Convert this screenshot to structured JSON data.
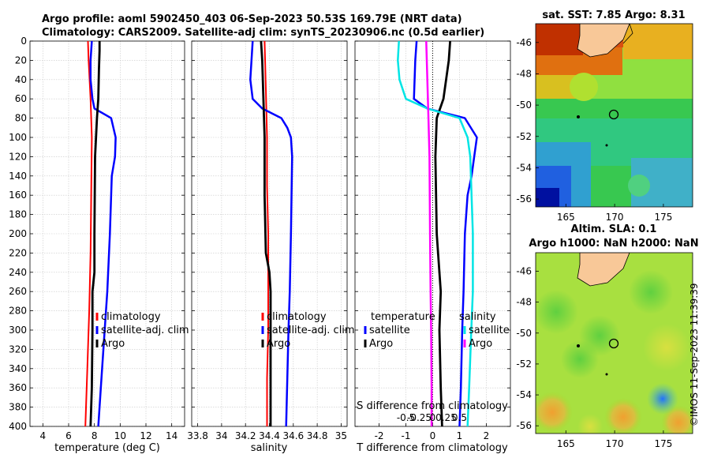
{
  "header": {
    "title_line1": "Argo profile: aoml 5902450_403 06-Sep-2023 50.53S 169.79E (NRT data)",
    "title_line2": "Climatology: CARS2009. Satellite-adj clim: synTS_20230906.nc (0.5d earlier)"
  },
  "credit": "©IMOS 11-Sep-2023 11:39:39",
  "colors": {
    "climatology": "#ff0000",
    "satellite": "#0000ff",
    "argo": "#000000",
    "diff_temperature": "#00e5e5",
    "diff_salinity": "#ff00ff"
  },
  "depth_ticks": [
    0,
    20,
    40,
    60,
    80,
    100,
    120,
    140,
    160,
    180,
    200,
    220,
    240,
    260,
    280,
    300,
    320,
    340,
    360,
    380,
    400
  ],
  "chart_data": [
    {
      "type": "line",
      "name": "temperature",
      "xlabel": "temperature (deg C)",
      "xlim": [
        3,
        15
      ],
      "ylim": [
        0,
        400
      ],
      "xticks": [
        4,
        6,
        8,
        10,
        12,
        14
      ],
      "legend": [
        "climatology",
        "satellite-adj. clim",
        "Argo"
      ],
      "series": [
        {
          "name": "climatology",
          "depth": [
            0,
            20,
            60,
            100,
            160,
            220,
            280,
            340,
            400
          ],
          "values": [
            7.5,
            7.55,
            7.7,
            7.8,
            7.75,
            7.7,
            7.6,
            7.45,
            7.3
          ]
        },
        {
          "name": "satellite-adj. clim",
          "depth": [
            0,
            20,
            40,
            60,
            70,
            80,
            100,
            120,
            140,
            160,
            200,
            260,
            300,
            360,
            400
          ],
          "values": [
            7.8,
            7.7,
            7.7,
            7.85,
            8.0,
            9.3,
            9.65,
            9.6,
            9.35,
            9.3,
            9.2,
            9.0,
            8.8,
            8.5,
            8.3
          ]
        },
        {
          "name": "Argo",
          "depth": [
            0,
            10,
            30,
            60,
            80,
            120,
            200,
            240,
            260,
            300,
            360,
            400
          ],
          "values": [
            8.4,
            8.4,
            8.35,
            8.3,
            8.2,
            8.05,
            8.0,
            8.0,
            7.85,
            7.85,
            7.8,
            7.7
          ]
        }
      ]
    },
    {
      "type": "line",
      "name": "salinity",
      "xlabel": "salinity",
      "xlim": [
        33.75,
        35.05
      ],
      "ylim": [
        0,
        400
      ],
      "xticks": [
        "33.8",
        "34",
        "34.2",
        "34.4",
        "34.6",
        "34.8",
        "35"
      ],
      "legend": [
        "climatology",
        "satellite-adj. clim",
        "Argo"
      ],
      "series": [
        {
          "name": "climatology",
          "depth": [
            0,
            50,
            100,
            150,
            200,
            260,
            300,
            350,
            400
          ],
          "values": [
            34.36,
            34.37,
            34.38,
            34.38,
            34.39,
            34.39,
            34.39,
            34.38,
            34.38
          ]
        },
        {
          "name": "satellite-adj. clim",
          "depth": [
            0,
            20,
            40,
            60,
            70,
            80,
            90,
            100,
            120,
            200,
            260,
            300,
            350,
            400
          ],
          "values": [
            34.26,
            34.25,
            34.24,
            34.26,
            34.34,
            34.5,
            34.55,
            34.58,
            34.59,
            34.58,
            34.57,
            34.56,
            34.55,
            34.54
          ]
        },
        {
          "name": "Argo",
          "depth": [
            0,
            20,
            60,
            100,
            160,
            220,
            240,
            260,
            300,
            360,
            400
          ],
          "values": [
            34.33,
            34.34,
            34.35,
            34.36,
            34.36,
            34.37,
            34.4,
            34.41,
            34.41,
            34.41,
            34.41
          ]
        }
      ]
    },
    {
      "type": "line",
      "name": "differences",
      "xlabel": "T difference from climatology",
      "xlabel_top": "S difference from climatology",
      "xlim": [
        -2.9,
        2.9
      ],
      "ylim": [
        0,
        400
      ],
      "xticks": [
        "-2",
        "-1",
        "0",
        "1",
        "2"
      ],
      "s_ticks": [
        "-0.5",
        "-0.25",
        "0",
        "0.25",
        "0.5"
      ],
      "legend_left_title": "temperature",
      "legend_right_title": "salinity",
      "legend": [
        "satellite",
        "Argo",
        "satellite",
        "Argo"
      ],
      "series": [
        {
          "name": "temperature satellite",
          "depth": [
            0,
            20,
            60,
            70,
            80,
            100,
            120,
            140,
            160,
            200,
            260,
            300,
            360,
            400
          ],
          "values": [
            -0.6,
            -0.65,
            -0.7,
            -0.2,
            1.2,
            1.65,
            1.55,
            1.45,
            1.3,
            1.2,
            1.15,
            1.1,
            1.05,
            1.0
          ]
        },
        {
          "name": "temperature Argo",
          "depth": [
            0,
            20,
            40,
            60,
            80,
            120,
            200,
            240,
            260,
            300,
            360,
            400
          ],
          "values": [
            0.65,
            0.6,
            0.5,
            0.4,
            0.15,
            0.1,
            0.15,
            0.25,
            0.3,
            0.25,
            0.3,
            0.35
          ]
        },
        {
          "name": "salinity satellite",
          "depth": [
            0,
            20,
            40,
            60,
            70,
            80,
            100,
            120,
            200,
            260,
            300,
            360,
            400
          ],
          "values": [
            -0.63,
            -0.65,
            -0.62,
            -0.5,
            -0.1,
            0.5,
            0.65,
            0.7,
            0.75,
            0.75,
            0.72,
            0.68,
            0.65
          ]
        },
        {
          "name": "salinity Argo",
          "depth": [
            0,
            40,
            80,
            120,
            200,
            260,
            300,
            360,
            400
          ],
          "values": [
            -0.12,
            -0.1,
            -0.08,
            -0.06,
            -0.05,
            -0.04,
            -0.03,
            -0.02,
            -0.02
          ]
        }
      ]
    },
    {
      "type": "heatmap",
      "name": "sst-map",
      "title": "sat. SST: 7.85 Argo: 8.31",
      "xticks": [
        "165",
        "170",
        "175"
      ],
      "yticks": [
        "-46",
        "-48",
        "-50",
        "-52",
        "-54",
        "-56"
      ]
    },
    {
      "type": "heatmap",
      "name": "sla-map",
      "title_line1": "Altim. SLA: 0.1",
      "title_line2": "Argo h1000: NaN h2000: NaN",
      "xticks": [
        "165",
        "170",
        "175"
      ],
      "yticks": [
        "-46",
        "-48",
        "-50",
        "-52",
        "-54",
        "-56"
      ]
    }
  ]
}
